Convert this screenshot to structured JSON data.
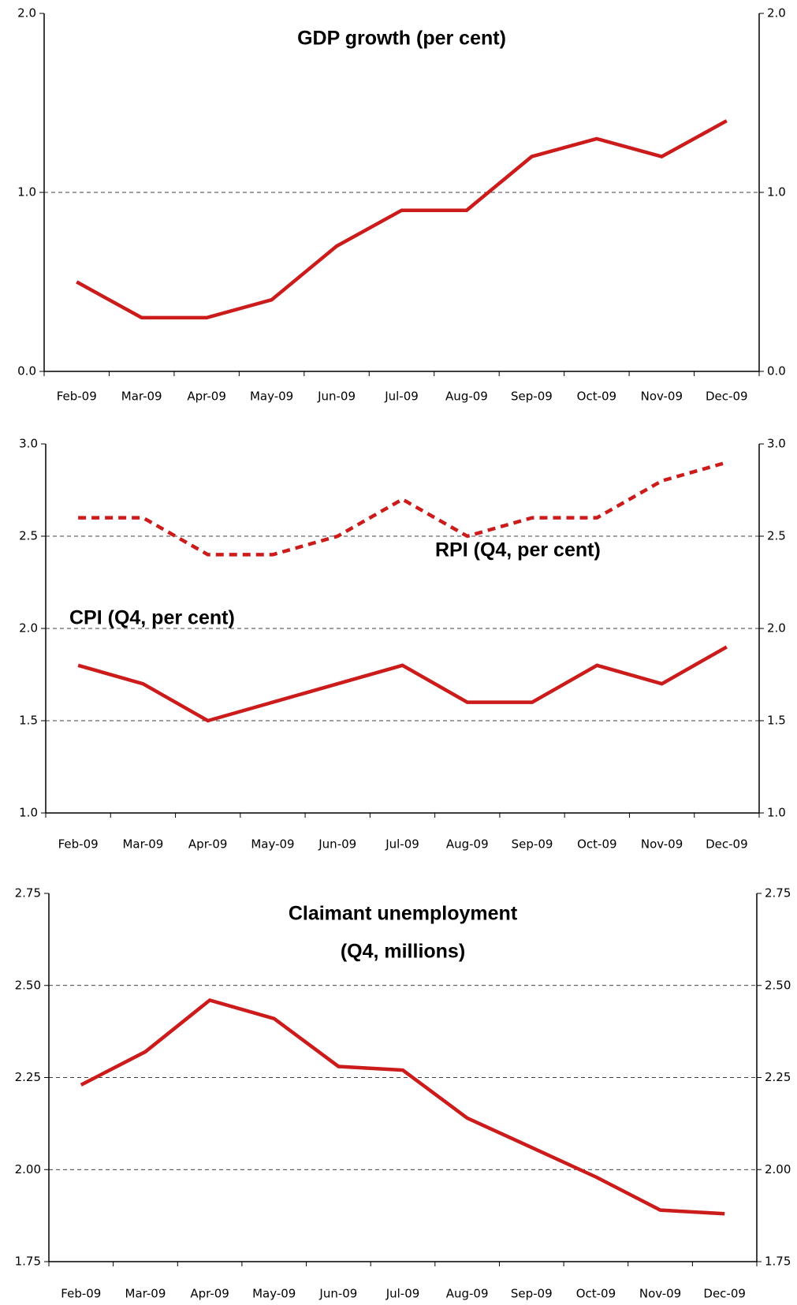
{
  "chart_data": [
    {
      "type": "line",
      "title": "GDP growth (per cent)",
      "categories": [
        "Feb-09",
        "Mar-09",
        "Apr-09",
        "May-09",
        "Jun-09",
        "Jul-09",
        "Aug-09",
        "Sep-09",
        "Oct-09",
        "Nov-09",
        "Dec-09"
      ],
      "series": [
        {
          "name": null,
          "color": "#cc1b1b",
          "dashed": false,
          "values": [
            0.5,
            0.3,
            0.3,
            0.4,
            0.7,
            0.9,
            0.9,
            1.2,
            1.3,
            1.2,
            1.4
          ]
        }
      ],
      "ylim": [
        0,
        2
      ],
      "yticks": [
        {
          "value": 0,
          "label": "0.0"
        },
        {
          "value": 1,
          "label": "1.0"
        },
        {
          "value": 2,
          "label": "2.0"
        }
      ],
      "grid": true
    },
    {
      "type": "line",
      "categories": [
        "Feb-09",
        "Mar-09",
        "Apr-09",
        "May-09",
        "Jun-09",
        "Jul-09",
        "Aug-09",
        "Sep-09",
        "Oct-09",
        "Nov-09",
        "Dec-09"
      ],
      "series": [
        {
          "name": "RPI (Q4, per cent)",
          "color": "#cc1b1b",
          "dashed": true,
          "values": [
            2.6,
            2.6,
            2.4,
            2.4,
            2.5,
            2.7,
            2.5,
            2.6,
            2.6,
            2.8,
            2.9
          ]
        },
        {
          "name": "CPI (Q4, per cent)",
          "color": "#cc1b1b",
          "dashed": false,
          "values": [
            1.8,
            1.7,
            1.5,
            1.6,
            1.7,
            1.8,
            1.6,
            1.6,
            1.8,
            1.7,
            1.9
          ]
        }
      ],
      "ylim": [
        1,
        3
      ],
      "yticks": [
        {
          "value": 1,
          "label": "1.0"
        },
        1.5,
        {
          "value": 2,
          "label": "2.0"
        },
        2.5,
        {
          "value": 3,
          "label": "3.0"
        }
      ],
      "grid": true
    },
    {
      "type": "line",
      "title": "Claimant unemployment",
      "subtitle": "(Q4, millions)",
      "categories": [
        "Feb-09",
        "Mar-09",
        "Apr-09",
        "May-09",
        "Jun-09",
        "Jul-09",
        "Aug-09",
        "Sep-09",
        "Oct-09",
        "Nov-09",
        "Dec-09"
      ],
      "series": [
        {
          "name": null,
          "color": "#cc1b1b",
          "dashed": false,
          "values": [
            2.23,
            2.32,
            2.46,
            2.41,
            2.28,
            2.27,
            2.14,
            2.06,
            1.98,
            1.89,
            1.88
          ]
        }
      ],
      "ylim": [
        1.75,
        2.75
      ],
      "yticks": [
        1.75,
        {
          "value": 2,
          "label": "2.00"
        },
        2.25,
        {
          "value": 2.5,
          "label": "2.50"
        },
        2.75
      ],
      "grid": true
    }
  ]
}
